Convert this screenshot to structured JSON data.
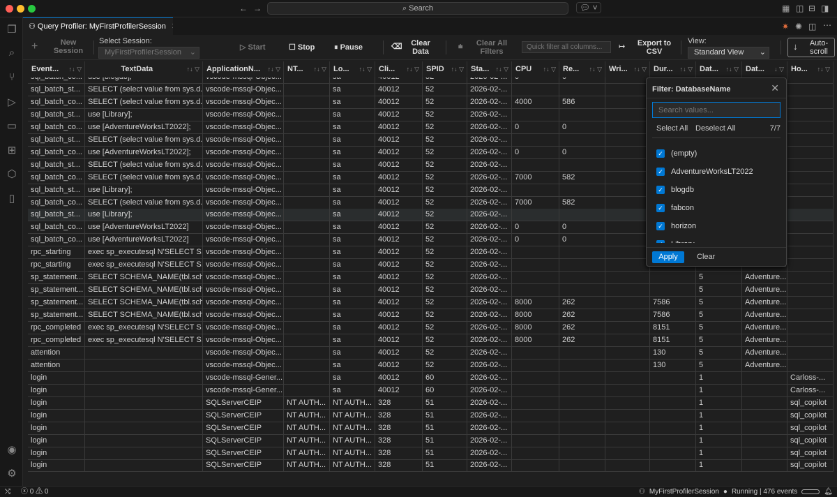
{
  "titlebar": {
    "search": "Search"
  },
  "tab": {
    "title": "Query Profiler: MyFirstProfilerSession"
  },
  "toolbar": {
    "new_session": "New Session",
    "select_session_label": "Select Session:",
    "session_value": "MyFirstProfilerSession",
    "start": "Start",
    "stop": "Stop",
    "pause": "Pause",
    "clear_data": "Clear Data",
    "clear_filters": "Clear All Filters",
    "quick_filter_placeholder": "Quick filter all columns...",
    "export": "Export to CSV",
    "view_label": "View:",
    "view_value": "Standard View",
    "autoscroll": "Auto-scroll"
  },
  "columns": [
    {
      "label": "Event...",
      "sort": "↑↓"
    },
    {
      "label": "TextData",
      "sort": "↑↓"
    },
    {
      "label": "ApplicationN...",
      "sort": "↑↓"
    },
    {
      "label": "NT...",
      "sort": "↑↓"
    },
    {
      "label": "Lo...",
      "sort": "↑↓"
    },
    {
      "label": "Cli...",
      "sort": "↑↓"
    },
    {
      "label": "SPID",
      "sort": "↑↓"
    },
    {
      "label": "Sta...",
      "sort": "↑↓"
    },
    {
      "label": "CPU",
      "sort": "↑↓"
    },
    {
      "label": "Re...",
      "sort": "↑↓"
    },
    {
      "label": "Wri...",
      "sort": "↑↓"
    },
    {
      "label": "Dur...",
      "sort": "↑↓"
    },
    {
      "label": "Dat...",
      "sort": "↑↓"
    },
    {
      "label": "Dat...",
      "sort": "↓"
    },
    {
      "label": "Ho...",
      "sort": "↑↓"
    }
  ],
  "rows": [
    [
      "sql_batch_co...",
      "use [blogdb];",
      "vscode-mssql-Objec...",
      "",
      "sa",
      "40012",
      "52",
      "2026-02-...",
      "0",
      "0",
      "",
      "",
      "",
      "",
      ""
    ],
    [
      "sql_batch_st...",
      "SELECT (select value from sys.d...",
      "vscode-mssql-Objec...",
      "",
      "sa",
      "40012",
      "52",
      "2026-02-...",
      "",
      "",
      "",
      "",
      "",
      "",
      ""
    ],
    [
      "sql_batch_co...",
      "SELECT (select value from sys.d...",
      "vscode-mssql-Objec...",
      "",
      "sa",
      "40012",
      "52",
      "2026-02-...",
      "4000",
      "586",
      "",
      "",
      "",
      "",
      ""
    ],
    [
      "sql_batch_st...",
      "use [Library];",
      "vscode-mssql-Objec...",
      "",
      "sa",
      "40012",
      "52",
      "2026-02-...",
      "",
      "",
      "",
      "",
      "",
      "",
      ""
    ],
    [
      "sql_batch_co...",
      "use [AdventureWorksLT2022];",
      "vscode-mssql-Objec...",
      "",
      "sa",
      "40012",
      "52",
      "2026-02-...",
      "0",
      "0",
      "",
      "",
      "",
      "",
      ""
    ],
    [
      "sql_batch_st...",
      "SELECT (select value from sys.d...",
      "vscode-mssql-Objec...",
      "",
      "sa",
      "40012",
      "52",
      "2026-02-...",
      "",
      "",
      "",
      "",
      "",
      "",
      ""
    ],
    [
      "sql_batch_co...",
      "use [AdventureWorksLT2022];",
      "vscode-mssql-Objec...",
      "",
      "sa",
      "40012",
      "52",
      "2026-02-...",
      "0",
      "0",
      "",
      "",
      "",
      "",
      ""
    ],
    [
      "sql_batch_st...",
      "SELECT (select value from sys.d...",
      "vscode-mssql-Objec...",
      "",
      "sa",
      "40012",
      "52",
      "2026-02-...",
      "",
      "",
      "",
      "",
      "",
      "",
      ""
    ],
    [
      "sql_batch_co...",
      "SELECT (select value from sys.d...",
      "vscode-mssql-Objec...",
      "",
      "sa",
      "40012",
      "52",
      "2026-02-...",
      "7000",
      "582",
      "",
      "",
      "",
      "",
      ""
    ],
    [
      "sql_batch_st...",
      "use [Library];",
      "vscode-mssql-Objec...",
      "",
      "sa",
      "40012",
      "52",
      "2026-02-...",
      "",
      "",
      "",
      "",
      "",
      "",
      ""
    ],
    [
      "sql_batch_co...",
      "SELECT (select value from sys.d...",
      "vscode-mssql-Objec...",
      "",
      "sa",
      "40012",
      "52",
      "2026-02-...",
      "7000",
      "582",
      "",
      "",
      "",
      "",
      ""
    ],
    [
      "sql_batch_st...",
      "use [Library];",
      "vscode-mssql-Objec...",
      "",
      "sa",
      "40012",
      "52",
      "2026-02-...",
      "",
      "",
      "",
      "",
      "",
      "",
      ""
    ],
    [
      "sql_batch_co...",
      "use [AdventureWorksLT2022]",
      "vscode-mssql-Objec...",
      "",
      "sa",
      "40012",
      "52",
      "2026-02-...",
      "0",
      "0",
      "",
      "",
      "",
      "",
      ""
    ],
    [
      "sql_batch_co...",
      "use [AdventureWorksLT2022]",
      "vscode-mssql-Objec...",
      "",
      "sa",
      "40012",
      "52",
      "2026-02-...",
      "0",
      "0",
      "",
      "",
      "",
      "",
      ""
    ],
    [
      "rpc_starting",
      "exec sp_executesql N'SELECT S...",
      "vscode-mssql-Objec...",
      "",
      "sa",
      "40012",
      "52",
      "2026-02-...",
      "",
      "",
      "",
      "",
      "",
      "",
      ""
    ],
    [
      "rpc_starting",
      "exec sp_executesql N'SELECT S...",
      "vscode-mssql-Objec...",
      "",
      "sa",
      "40012",
      "52",
      "2026-02-...",
      "",
      "",
      "",
      "",
      "5",
      "Adventure...",
      ""
    ],
    [
      "sp_statement...",
      "SELECT SCHEMA_NAME(tbl.sch...",
      "vscode-mssql-Objec...",
      "",
      "sa",
      "40012",
      "52",
      "2026-02-...",
      "",
      "",
      "",
      "",
      "5",
      "Adventure...",
      ""
    ],
    [
      "sp_statement...",
      "SELECT SCHEMA_NAME(tbl.sch...",
      "vscode-mssql-Objec...",
      "",
      "sa",
      "40012",
      "52",
      "2026-02-...",
      "",
      "",
      "",
      "",
      "5",
      "Adventure...",
      ""
    ],
    [
      "sp_statement...",
      "SELECT SCHEMA_NAME(tbl.sch...",
      "vscode-mssql-Objec...",
      "",
      "sa",
      "40012",
      "52",
      "2026-02-...",
      "8000",
      "262",
      "",
      "7586",
      "5",
      "Adventure...",
      ""
    ],
    [
      "sp_statement...",
      "SELECT SCHEMA_NAME(tbl.sch...",
      "vscode-mssql-Objec...",
      "",
      "sa",
      "40012",
      "52",
      "2026-02-...",
      "8000",
      "262",
      "",
      "7586",
      "5",
      "Adventure...",
      ""
    ],
    [
      "rpc_completed",
      "exec sp_executesql N'SELECT S...",
      "vscode-mssql-Objec...",
      "",
      "sa",
      "40012",
      "52",
      "2026-02-...",
      "8000",
      "262",
      "",
      "8151",
      "5",
      "Adventure...",
      ""
    ],
    [
      "rpc_completed",
      "exec sp_executesql N'SELECT S...",
      "vscode-mssql-Objec...",
      "",
      "sa",
      "40012",
      "52",
      "2026-02-...",
      "8000",
      "262",
      "",
      "8151",
      "5",
      "Adventure...",
      ""
    ],
    [
      "attention",
      "",
      "vscode-mssql-Objec...",
      "",
      "sa",
      "40012",
      "52",
      "2026-02-...",
      "",
      "",
      "",
      "130",
      "5",
      "Adventure...",
      ""
    ],
    [
      "attention",
      "",
      "vscode-mssql-Objec...",
      "",
      "sa",
      "40012",
      "52",
      "2026-02-...",
      "",
      "",
      "",
      "130",
      "5",
      "Adventure...",
      ""
    ],
    [
      "login",
      "",
      "vscode-mssql-Gener...",
      "",
      "sa",
      "40012",
      "60",
      "2026-02-...",
      "",
      "",
      "",
      "",
      "1",
      "",
      "Carloss-..."
    ],
    [
      "login",
      "",
      "vscode-mssql-Gener...",
      "",
      "sa",
      "40012",
      "60",
      "2026-02-...",
      "",
      "",
      "",
      "",
      "1",
      "",
      "Carloss-..."
    ],
    [
      "login",
      "",
      "SQLServerCEIP",
      "NT AUTH...",
      "NT AUTH...",
      "328",
      "51",
      "2026-02-...",
      "",
      "",
      "",
      "",
      "1",
      "",
      "sql_copilot"
    ],
    [
      "login",
      "",
      "SQLServerCEIP",
      "NT AUTH...",
      "NT AUTH...",
      "328",
      "51",
      "2026-02-...",
      "",
      "",
      "",
      "",
      "1",
      "",
      "sql_copilot"
    ],
    [
      "login",
      "",
      "SQLServerCEIP",
      "NT AUTH...",
      "NT AUTH...",
      "328",
      "51",
      "2026-02-...",
      "",
      "",
      "",
      "",
      "1",
      "",
      "sql_copilot"
    ],
    [
      "login",
      "",
      "SQLServerCEIP",
      "NT AUTH...",
      "NT AUTH...",
      "328",
      "51",
      "2026-02-...",
      "",
      "",
      "",
      "",
      "1",
      "",
      "sql_copilot"
    ],
    [
      "login",
      "",
      "SQLServerCEIP",
      "NT AUTH...",
      "NT AUTH...",
      "328",
      "51",
      "2026-02-...",
      "",
      "",
      "",
      "",
      "1",
      "",
      "sql_copilot"
    ],
    [
      "login",
      "",
      "SQLServerCEIP",
      "NT AUTH...",
      "NT AUTH...",
      "328",
      "51",
      "2026-02-...",
      "",
      "",
      "",
      "",
      "1",
      "",
      "sql_copilot"
    ]
  ],
  "filter_popup": {
    "title": "Filter: DatabaseName",
    "search_placeholder": "Search values...",
    "select_all": "Select All",
    "deselect_all": "Deselect All",
    "count": "7/7",
    "options": [
      {
        "label": "(empty)",
        "checked": true
      },
      {
        "label": "AdventureWorksLT2022",
        "checked": true
      },
      {
        "label": "blogdb",
        "checked": true
      },
      {
        "label": "fabcon",
        "checked": true
      },
      {
        "label": "horizon",
        "checked": true
      },
      {
        "label": "Library",
        "checked": true
      }
    ],
    "apply": "Apply",
    "clear": "Clear"
  },
  "status": {
    "errors": "0",
    "warnings": "0",
    "session": "MyFirstProfilerSession",
    "state": "Running | 476 events"
  },
  "colors": {
    "accent": "#0078d4"
  }
}
